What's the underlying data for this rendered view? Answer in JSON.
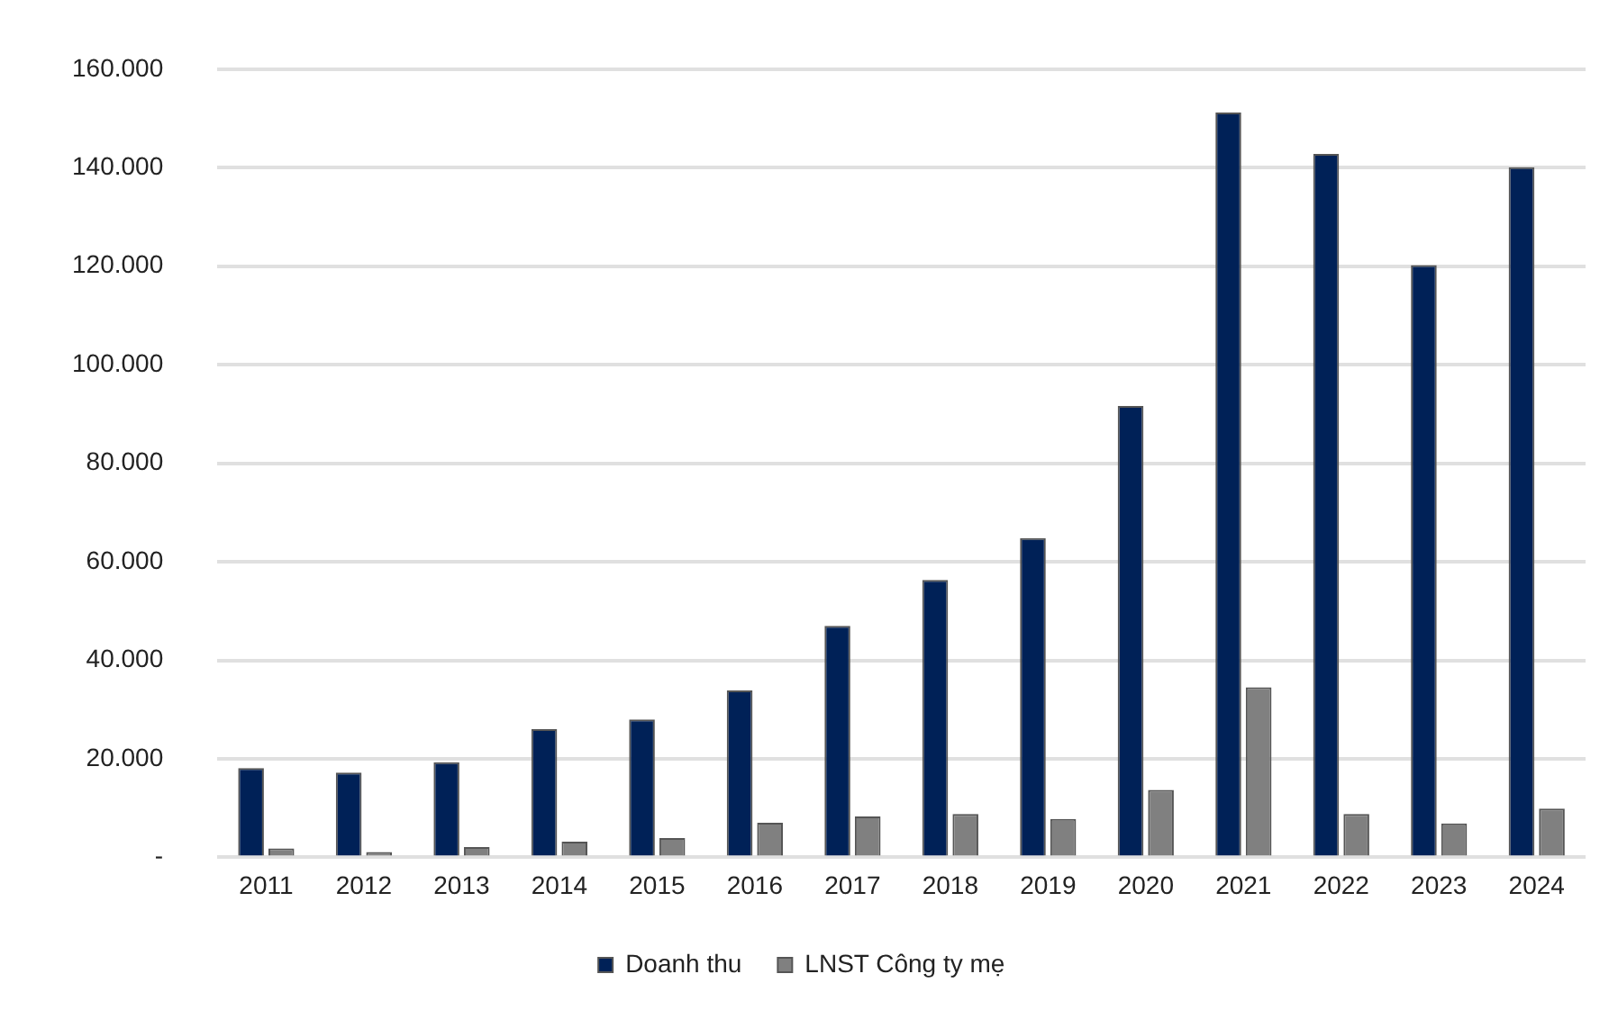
{
  "chart_data": {
    "type": "bar",
    "categories": [
      "2011",
      "2012",
      "2013",
      "2014",
      "2015",
      "2016",
      "2017",
      "2018",
      "2019",
      "2020",
      "2021",
      "2022",
      "2023",
      "2024"
    ],
    "series": [
      {
        "name": "Doanh thu",
        "color": "#002157",
        "values": [
          18100,
          17200,
          19300,
          26000,
          28000,
          33900,
          47000,
          56300,
          64800,
          91600,
          151200,
          142800,
          120200,
          140100
        ]
      },
      {
        "name": "LNST Công ty mẹ",
        "color": "#808080",
        "values": [
          1800,
          1100,
          2100,
          3200,
          3900,
          7000,
          8300,
          8800,
          7800,
          13700,
          34500,
          8800,
          6900,
          9900
        ]
      }
    ],
    "ylim": [
      0,
      160000
    ],
    "yticks": [
      {
        "value": 0,
        "label": "-"
      },
      {
        "value": 20000,
        "label": "20.000"
      },
      {
        "value": 40000,
        "label": "40.000"
      },
      {
        "value": 60000,
        "label": "60.000"
      },
      {
        "value": 80000,
        "label": "80.000"
      },
      {
        "value": 100000,
        "label": "100.000"
      },
      {
        "value": 120000,
        "label": "120.000"
      },
      {
        "value": 140000,
        "label": "140.000"
      },
      {
        "value": 160000,
        "label": "160.000"
      }
    ],
    "grid": "y",
    "legend": "bottom"
  }
}
